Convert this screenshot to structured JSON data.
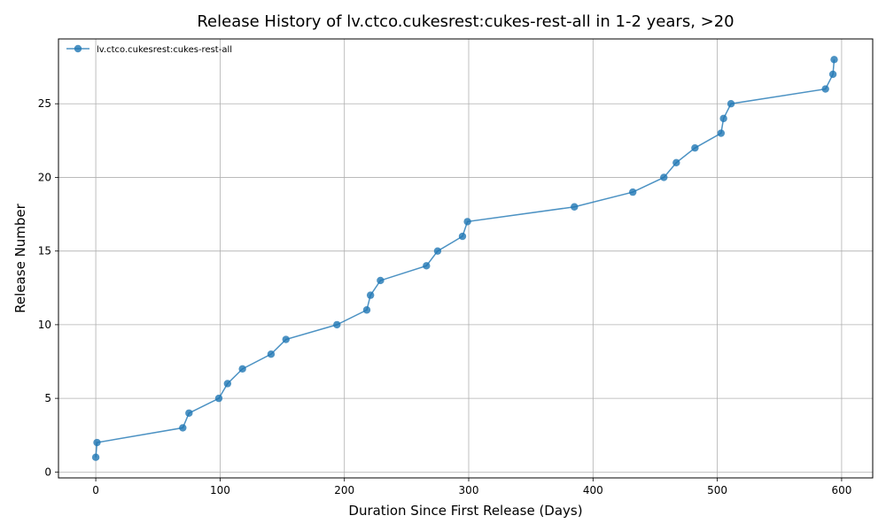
{
  "chart_data": {
    "type": "line",
    "title": "Release History of lv.ctco.cukesrest:cukes-rest-all in 1-2 years, >20",
    "xlabel": "Duration Since First Release (Days)",
    "ylabel": "Release Number",
    "xlim": [
      -30,
      625
    ],
    "ylim": [
      -0.4,
      29.4
    ],
    "xticks": [
      0,
      100,
      200,
      300,
      400,
      500,
      600
    ],
    "yticks": [
      0,
      5,
      10,
      15,
      20,
      25
    ],
    "grid": true,
    "legend_position": "upper-left",
    "series_color": "#1f77b4",
    "series": [
      {
        "name": "lv.ctco.cukesrest:cukes-rest-all",
        "x": [
          0,
          1,
          70,
          75,
          99,
          106,
          118,
          141,
          153,
          194,
          218,
          221,
          229,
          266,
          275,
          295,
          299,
          385,
          432,
          457,
          467,
          482,
          503,
          505,
          511,
          587,
          593,
          594
        ],
        "y": [
          1,
          2,
          3,
          4,
          5,
          6,
          7,
          8,
          9,
          10,
          11,
          12,
          13,
          14,
          15,
          16,
          17,
          18,
          19,
          20,
          21,
          22,
          23,
          24,
          25,
          26,
          27,
          28
        ]
      }
    ]
  }
}
